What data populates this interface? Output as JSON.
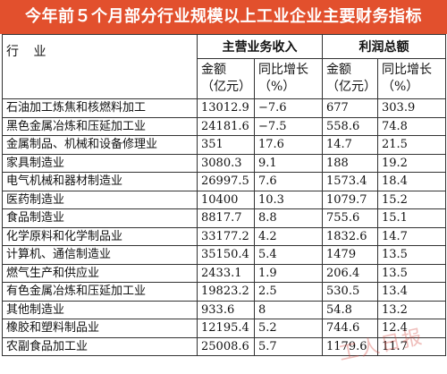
{
  "title": "今年前５个月部分行业规模以上工业企业主要财务指标",
  "header": {
    "industry": "行 业",
    "group_revenue": "主营业务收入",
    "group_profit": "利润总额",
    "revenue_amount": "金额",
    "revenue_amount_unit": "（亿元）",
    "revenue_growth": "同比增长",
    "revenue_growth_unit": "（%）",
    "profit_amount": "金额",
    "profit_amount_unit": "（亿元）",
    "profit_growth": "同比增长",
    "profit_growth_unit": "（%）"
  },
  "rows": [
    {
      "industry": "石油加工炼焦和核燃料加工",
      "revenue": "13012.9",
      "revenue_growth": "−7.6",
      "profit": "677",
      "profit_growth": "303.9"
    },
    {
      "industry": "黑色金属冶炼和压延加工业",
      "revenue": "24181.6",
      "revenue_growth": "−7.5",
      "profit": "558.6",
      "profit_growth": "74.8"
    },
    {
      "industry": "金属制品、机械和设备修理业",
      "revenue": "351",
      "revenue_growth": "17.6",
      "profit": "14.7",
      "profit_growth": "21.5"
    },
    {
      "industry": "家具制造业",
      "revenue": "3080.3",
      "revenue_growth": "9.1",
      "profit": "188",
      "profit_growth": "19.2"
    },
    {
      "industry": "电气机械和器材制造业",
      "revenue": "26997.5",
      "revenue_growth": "7.6",
      "profit": "1573.4",
      "profit_growth": "18.4"
    },
    {
      "industry": "医药制造业",
      "revenue": "10400",
      "revenue_growth": "10.3",
      "profit": "1079.7",
      "profit_growth": "15.2"
    },
    {
      "industry": "食品制造业",
      "revenue": "8817.7",
      "revenue_growth": "8.8",
      "profit": "755.6",
      "profit_growth": "15.1"
    },
    {
      "industry": "化学原料和化学制品业",
      "revenue": "33177.2",
      "revenue_growth": "4.2",
      "profit": "1832.6",
      "profit_growth": "14.7"
    },
    {
      "industry": "计算机、通信制造业",
      "revenue": "35150.4",
      "revenue_growth": "5.4",
      "profit": "1479",
      "profit_growth": "13.5"
    },
    {
      "industry": "燃气生产和供应业",
      "revenue": "2433.1",
      "revenue_growth": "1.9",
      "profit": "206.4",
      "profit_growth": "13.5"
    },
    {
      "industry": "有色金属冶炼和压延加工业",
      "revenue": "19823.2",
      "revenue_growth": "2.5",
      "profit": "530.5",
      "profit_growth": "13.4"
    },
    {
      "industry": "其他制造业",
      "revenue": "933.6",
      "revenue_growth": "8",
      "profit": "54.8",
      "profit_growth": "13.2"
    },
    {
      "industry": "橡胶和塑料制品业",
      "revenue": "12195.4",
      "revenue_growth": "5.2",
      "profit": "744.6",
      "profit_growth": "12.4"
    },
    {
      "industry": "农副食品加工业",
      "revenue": "25008.6",
      "revenue_growth": "5.7",
      "profit": "1179.6",
      "profit_growth": "11.7"
    }
  ],
  "watermark": "工人日报"
}
